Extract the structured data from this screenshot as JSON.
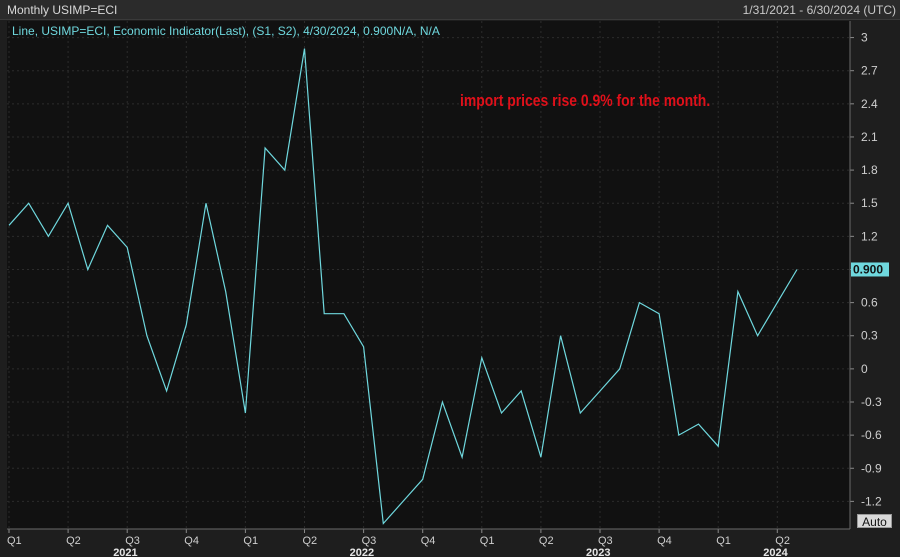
{
  "header": {
    "title": "Monthly USIMP=ECI",
    "date_range": "1/31/2021 - 6/30/2024 (UTC)"
  },
  "legend_text": "Line, USIMP=ECI, Economic Indicator(Last), (S1, S2), 4/30/2024, 0.900N/A, N/A",
  "annotation": "import prices rise 0.9% for the month.",
  "auto_button": "Auto",
  "last_value_label": "0.900",
  "colors": {
    "line": "#6fd8de",
    "annotation": "#e0101a",
    "background": "#111111"
  },
  "chart_data": {
    "type": "line",
    "series": [
      {
        "values": [
          1.3,
          1.5,
          1.2,
          1.5,
          0.9,
          1.3,
          1.1,
          0.3,
          -0.2,
          0.4,
          1.5,
          0.7,
          -0.4,
          2.0,
          1.8,
          2.9,
          0.5,
          0.5,
          0.2,
          -1.4,
          -1.2,
          -1.0,
          -0.3,
          -0.8,
          0.1,
          -0.4,
          -0.2,
          -0.8,
          0.3,
          -0.4,
          -0.2,
          0.0,
          0.6,
          0.5,
          -0.6,
          -0.5,
          -0.7,
          0.7,
          0.3,
          0.6,
          0.9
        ]
      }
    ],
    "y_ticks": [
      "3",
      "2.7",
      "2.4",
      "2.1",
      "1.8",
      "1.5",
      "1.2",
      "0.9",
      "0.6",
      "0.3",
      "0",
      "-0.3",
      "-0.6",
      "-0.9",
      "-1.2"
    ],
    "ylim": [
      -1.45,
      3.15
    ],
    "x_ticks": [
      {
        "index": 0,
        "label": "Q1"
      },
      {
        "index": 3,
        "label": "Q2"
      },
      {
        "index": 6,
        "label": "Q3"
      },
      {
        "index": 9,
        "label": "Q4"
      },
      {
        "index": 12,
        "label": "Q1"
      },
      {
        "index": 15,
        "label": "Q2"
      },
      {
        "index": 18,
        "label": "Q3"
      },
      {
        "index": 21,
        "label": "Q4"
      },
      {
        "index": 24,
        "label": "Q1"
      },
      {
        "index": 27,
        "label": "Q2"
      },
      {
        "index": 30,
        "label": "Q3"
      },
      {
        "index": 33,
        "label": "Q4"
      },
      {
        "index": 36,
        "label": "Q1"
      },
      {
        "index": 39,
        "label": "Q2"
      }
    ],
    "years": [
      {
        "index": 6,
        "label": "2021"
      },
      {
        "index": 18,
        "label": "2022"
      },
      {
        "index": 30,
        "label": "2023"
      },
      {
        "index": 39,
        "label": "2024"
      }
    ],
    "grid": true,
    "last_value": 0.9
  }
}
